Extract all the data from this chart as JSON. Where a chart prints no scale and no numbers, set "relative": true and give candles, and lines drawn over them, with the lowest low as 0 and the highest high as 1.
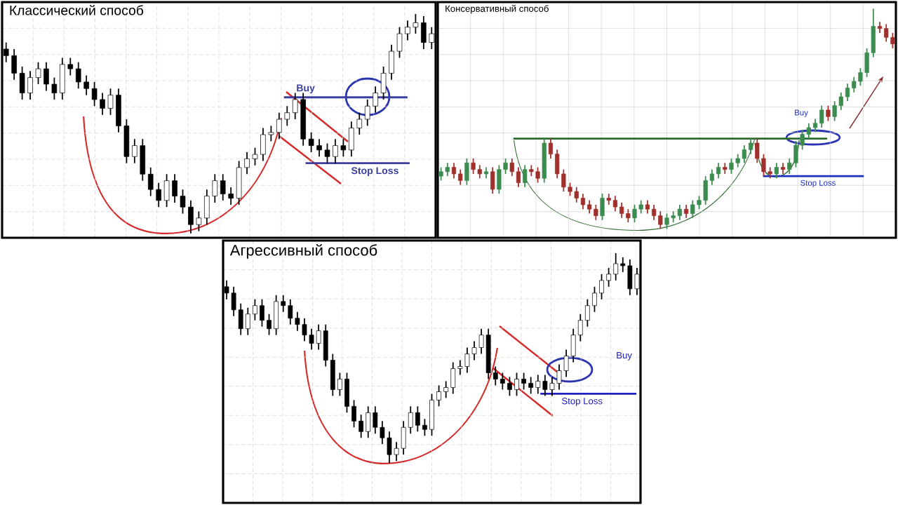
{
  "chart_data": [
    {
      "type": "candlestick",
      "title": "Классический способ",
      "relative": true,
      "grid": true,
      "tick_labels": false,
      "color": "#000000",
      "ohlc": [
        [
          0.84,
          0.87,
          0.78,
          0.81
        ],
        [
          0.81,
          0.84,
          0.7,
          0.73
        ],
        [
          0.73,
          0.76,
          0.61,
          0.64
        ],
        [
          0.64,
          0.74,
          0.61,
          0.71
        ],
        [
          0.71,
          0.78,
          0.68,
          0.75
        ],
        [
          0.75,
          0.78,
          0.65,
          0.68
        ],
        [
          0.68,
          0.71,
          0.61,
          0.64
        ],
        [
          0.64,
          0.8,
          0.61,
          0.77
        ],
        [
          0.77,
          0.8,
          0.72,
          0.75
        ],
        [
          0.75,
          0.78,
          0.66,
          0.69
        ],
        [
          0.69,
          0.72,
          0.63,
          0.66
        ],
        [
          0.66,
          0.69,
          0.58,
          0.61
        ],
        [
          0.61,
          0.64,
          0.54,
          0.57
        ],
        [
          0.57,
          0.66,
          0.54,
          0.63
        ],
        [
          0.63,
          0.66,
          0.46,
          0.49
        ],
        [
          0.49,
          0.52,
          0.32,
          0.35
        ],
        [
          0.35,
          0.43,
          0.32,
          0.4
        ],
        [
          0.4,
          0.43,
          0.24,
          0.27
        ],
        [
          0.27,
          0.3,
          0.17,
          0.2
        ],
        [
          0.2,
          0.23,
          0.12,
          0.15
        ],
        [
          0.15,
          0.27,
          0.12,
          0.24
        ],
        [
          0.24,
          0.27,
          0.14,
          0.17
        ],
        [
          0.17,
          0.2,
          0.09,
          0.12
        ],
        [
          0.12,
          0.15,
          0.0,
          0.04
        ],
        [
          0.04,
          0.1,
          0.01,
          0.07
        ],
        [
          0.07,
          0.2,
          0.04,
          0.17
        ],
        [
          0.17,
          0.27,
          0.14,
          0.24
        ],
        [
          0.24,
          0.27,
          0.15,
          0.18
        ],
        [
          0.18,
          0.21,
          0.13,
          0.16
        ],
        [
          0.16,
          0.33,
          0.13,
          0.3
        ],
        [
          0.3,
          0.37,
          0.27,
          0.34
        ],
        [
          0.34,
          0.39,
          0.31,
          0.36
        ],
        [
          0.36,
          0.48,
          0.33,
          0.45
        ],
        [
          0.45,
          0.49,
          0.42,
          0.46
        ],
        [
          0.46,
          0.55,
          0.43,
          0.52
        ],
        [
          0.52,
          0.58,
          0.49,
          0.55
        ],
        [
          0.55,
          0.64,
          0.52,
          0.61
        ],
        [
          0.61,
          0.64,
          0.4,
          0.43
        ],
        [
          0.43,
          0.46,
          0.37,
          0.4
        ],
        [
          0.4,
          0.43,
          0.35,
          0.38
        ],
        [
          0.38,
          0.41,
          0.32,
          0.35
        ],
        [
          0.35,
          0.43,
          0.32,
          0.4
        ],
        [
          0.4,
          0.43,
          0.35,
          0.38
        ],
        [
          0.38,
          0.51,
          0.35,
          0.48
        ],
        [
          0.48,
          0.55,
          0.45,
          0.52
        ],
        [
          0.52,
          0.61,
          0.49,
          0.58
        ],
        [
          0.58,
          0.67,
          0.55,
          0.64
        ],
        [
          0.64,
          0.76,
          0.61,
          0.73
        ],
        [
          0.73,
          0.86,
          0.7,
          0.83
        ],
        [
          0.83,
          0.94,
          0.8,
          0.91
        ],
        [
          0.91,
          0.97,
          0.88,
          0.94
        ],
        [
          0.94,
          1.0,
          0.91,
          0.96
        ],
        [
          0.96,
          0.99,
          0.84,
          0.87
        ],
        [
          0.87,
          0.94,
          0.84,
          0.91
        ]
      ],
      "ref_lines": [
        {
          "axis": "y",
          "value": 0.62,
          "label": "Buy",
          "color": "#3b3fa0"
        },
        {
          "axis": "y",
          "value": 0.32,
          "label": "Stop Loss",
          "color": "#3b3fa0"
        }
      ]
    },
    {
      "type": "candlestick",
      "title": "Консервативный способ",
      "relative": true,
      "grid": true,
      "tick_labels": false,
      "ohlc": [
        [
          0.24,
          0.28,
          0.22,
          0.26
        ],
        [
          0.26,
          0.3,
          0.24,
          0.28
        ],
        [
          0.28,
          0.3,
          0.23,
          0.25
        ],
        [
          0.25,
          0.27,
          0.2,
          0.22
        ],
        [
          0.22,
          0.32,
          0.2,
          0.3
        ],
        [
          0.3,
          0.32,
          0.25,
          0.27
        ],
        [
          0.27,
          0.29,
          0.23,
          0.25
        ],
        [
          0.25,
          0.28,
          0.23,
          0.26
        ],
        [
          0.26,
          0.28,
          0.16,
          0.18
        ],
        [
          0.18,
          0.29,
          0.16,
          0.27
        ],
        [
          0.27,
          0.32,
          0.25,
          0.3
        ],
        [
          0.3,
          0.32,
          0.24,
          0.26
        ],
        [
          0.26,
          0.28,
          0.19,
          0.21
        ],
        [
          0.21,
          0.29,
          0.19,
          0.27
        ],
        [
          0.27,
          0.29,
          0.24,
          0.26
        ],
        [
          0.26,
          0.28,
          0.21,
          0.23
        ],
        [
          0.23,
          0.41,
          0.21,
          0.39
        ],
        [
          0.39,
          0.41,
          0.32,
          0.34
        ],
        [
          0.34,
          0.36,
          0.23,
          0.25
        ],
        [
          0.25,
          0.27,
          0.17,
          0.19
        ],
        [
          0.19,
          0.21,
          0.15,
          0.17
        ],
        [
          0.17,
          0.19,
          0.12,
          0.14
        ],
        [
          0.14,
          0.16,
          0.09,
          0.11
        ],
        [
          0.11,
          0.13,
          0.07,
          0.09
        ],
        [
          0.09,
          0.11,
          0.04,
          0.06
        ],
        [
          0.06,
          0.16,
          0.04,
          0.14
        ],
        [
          0.14,
          0.16,
          0.11,
          0.13
        ],
        [
          0.13,
          0.15,
          0.08,
          0.1
        ],
        [
          0.1,
          0.12,
          0.05,
          0.07
        ],
        [
          0.07,
          0.09,
          0.03,
          0.05
        ],
        [
          0.05,
          0.11,
          0.03,
          0.09
        ],
        [
          0.09,
          0.13,
          0.07,
          0.11
        ],
        [
          0.11,
          0.13,
          0.07,
          0.09
        ],
        [
          0.09,
          0.11,
          0.04,
          0.06
        ],
        [
          0.06,
          0.08,
          0.0,
          0.02
        ],
        [
          0.02,
          0.07,
          0.0,
          0.05
        ],
        [
          0.05,
          0.08,
          0.03,
          0.06
        ],
        [
          0.06,
          0.11,
          0.04,
          0.09
        ],
        [
          0.09,
          0.11,
          0.05,
          0.07
        ],
        [
          0.07,
          0.13,
          0.05,
          0.11
        ],
        [
          0.11,
          0.15,
          0.09,
          0.13
        ],
        [
          0.13,
          0.24,
          0.11,
          0.22
        ],
        [
          0.22,
          0.27,
          0.2,
          0.25
        ],
        [
          0.25,
          0.3,
          0.23,
          0.28
        ],
        [
          0.28,
          0.3,
          0.25,
          0.27
        ],
        [
          0.27,
          0.32,
          0.25,
          0.3
        ],
        [
          0.3,
          0.34,
          0.28,
          0.32
        ],
        [
          0.32,
          0.38,
          0.3,
          0.36
        ],
        [
          0.36,
          0.41,
          0.34,
          0.39
        ],
        [
          0.39,
          0.41,
          0.3,
          0.32
        ],
        [
          0.32,
          0.34,
          0.24,
          0.26
        ],
        [
          0.26,
          0.28,
          0.23,
          0.25
        ],
        [
          0.25,
          0.3,
          0.23,
          0.28
        ],
        [
          0.28,
          0.3,
          0.25,
          0.27
        ],
        [
          0.27,
          0.32,
          0.25,
          0.3
        ],
        [
          0.3,
          0.4,
          0.28,
          0.38
        ],
        [
          0.38,
          0.45,
          0.36,
          0.43
        ],
        [
          0.43,
          0.48,
          0.41,
          0.46
        ],
        [
          0.46,
          0.5,
          0.44,
          0.48
        ],
        [
          0.48,
          0.56,
          0.46,
          0.54
        ],
        [
          0.54,
          0.56,
          0.49,
          0.51
        ],
        [
          0.51,
          0.58,
          0.49,
          0.56
        ],
        [
          0.56,
          0.62,
          0.54,
          0.6
        ],
        [
          0.6,
          0.66,
          0.58,
          0.64
        ],
        [
          0.64,
          0.69,
          0.62,
          0.67
        ],
        [
          0.67,
          0.73,
          0.65,
          0.71
        ],
        [
          0.71,
          0.82,
          0.69,
          0.8
        ],
        [
          0.8,
          1.0,
          0.78,
          0.92
        ],
        [
          0.92,
          0.94,
          0.89,
          0.91
        ],
        [
          0.91,
          0.93,
          0.85,
          0.87
        ],
        [
          0.87,
          0.89,
          0.82,
          0.84
        ]
      ],
      "colors": [
        "#3c8c50",
        "#3c8c50",
        "#a0302c",
        "#a0302c",
        "#3c8c50",
        "#a0302c",
        "#a0302c",
        "#3c8c50",
        "#a0302c",
        "#3c8c50",
        "#3c8c50",
        "#a0302c",
        "#a0302c",
        "#3c8c50",
        "#a0302c",
        "#a0302c",
        "#3c8c50",
        "#a0302c",
        "#a0302c",
        "#a0302c",
        "#a0302c",
        "#a0302c",
        "#a0302c",
        "#a0302c",
        "#a0302c",
        "#3c8c50",
        "#a0302c",
        "#a0302c",
        "#a0302c",
        "#a0302c",
        "#3c8c50",
        "#3c8c50",
        "#a0302c",
        "#a0302c",
        "#a0302c",
        "#3c8c50",
        "#3c8c50",
        "#3c8c50",
        "#a0302c",
        "#3c8c50",
        "#3c8c50",
        "#3c8c50",
        "#3c8c50",
        "#3c8c50",
        "#a0302c",
        "#3c8c50",
        "#3c8c50",
        "#3c8c50",
        "#3c8c50",
        "#a0302c",
        "#a0302c",
        "#a0302c",
        "#3c8c50",
        "#a0302c",
        "#3c8c50",
        "#3c8c50",
        "#3c8c50",
        "#3c8c50",
        "#3c8c50",
        "#3c8c50",
        "#a0302c",
        "#3c8c50",
        "#3c8c50",
        "#3c8c50",
        "#3c8c50",
        "#3c8c50",
        "#3c8c50",
        "#3c8c50",
        "#a0302c",
        "#a0302c",
        "#a0302c"
      ],
      "ref_lines": [
        {
          "axis": "y",
          "value": 0.41,
          "color": "#2e6b2e"
        },
        {
          "axis": "y",
          "value": 0.24,
          "label": "Stop Loss",
          "color": "#1f2fc0"
        }
      ],
      "annotations": [
        "Buy"
      ]
    },
    {
      "type": "candlestick",
      "title": "Агрессивный способ",
      "relative": true,
      "grid": true,
      "tick_labels": false,
      "color": "#000000",
      "ohlc": [
        [
          0.84,
          0.87,
          0.78,
          0.81
        ],
        [
          0.81,
          0.84,
          0.7,
          0.73
        ],
        [
          0.73,
          0.76,
          0.61,
          0.64
        ],
        [
          0.64,
          0.74,
          0.61,
          0.71
        ],
        [
          0.71,
          0.78,
          0.68,
          0.75
        ],
        [
          0.75,
          0.78,
          0.65,
          0.68
        ],
        [
          0.68,
          0.71,
          0.61,
          0.64
        ],
        [
          0.64,
          0.8,
          0.61,
          0.77
        ],
        [
          0.77,
          0.8,
          0.72,
          0.75
        ],
        [
          0.75,
          0.78,
          0.66,
          0.69
        ],
        [
          0.69,
          0.72,
          0.63,
          0.66
        ],
        [
          0.66,
          0.69,
          0.58,
          0.61
        ],
        [
          0.61,
          0.64,
          0.54,
          0.57
        ],
        [
          0.57,
          0.66,
          0.54,
          0.63
        ],
        [
          0.63,
          0.66,
          0.46,
          0.49
        ],
        [
          0.49,
          0.52,
          0.32,
          0.35
        ],
        [
          0.35,
          0.43,
          0.32,
          0.4
        ],
        [
          0.4,
          0.43,
          0.24,
          0.27
        ],
        [
          0.27,
          0.3,
          0.17,
          0.2
        ],
        [
          0.2,
          0.23,
          0.12,
          0.15
        ],
        [
          0.15,
          0.27,
          0.12,
          0.24
        ],
        [
          0.24,
          0.27,
          0.14,
          0.17
        ],
        [
          0.17,
          0.2,
          0.09,
          0.12
        ],
        [
          0.12,
          0.15,
          0.0,
          0.04
        ],
        [
          0.04,
          0.1,
          0.01,
          0.07
        ],
        [
          0.07,
          0.2,
          0.04,
          0.17
        ],
        [
          0.17,
          0.27,
          0.14,
          0.24
        ],
        [
          0.24,
          0.27,
          0.15,
          0.18
        ],
        [
          0.18,
          0.21,
          0.13,
          0.16
        ],
        [
          0.16,
          0.33,
          0.13,
          0.3
        ],
        [
          0.3,
          0.37,
          0.27,
          0.34
        ],
        [
          0.34,
          0.39,
          0.31,
          0.36
        ],
        [
          0.36,
          0.48,
          0.33,
          0.45
        ],
        [
          0.45,
          0.49,
          0.42,
          0.46
        ],
        [
          0.46,
          0.55,
          0.43,
          0.52
        ],
        [
          0.52,
          0.58,
          0.49,
          0.55
        ],
        [
          0.55,
          0.64,
          0.52,
          0.61
        ],
        [
          0.61,
          0.64,
          0.4,
          0.43
        ],
        [
          0.43,
          0.46,
          0.37,
          0.4
        ],
        [
          0.4,
          0.43,
          0.35,
          0.38
        ],
        [
          0.38,
          0.41,
          0.32,
          0.35
        ],
        [
          0.35,
          0.43,
          0.32,
          0.4
        ],
        [
          0.4,
          0.43,
          0.35,
          0.38
        ],
        [
          0.38,
          0.41,
          0.33,
          0.36
        ],
        [
          0.36,
          0.42,
          0.33,
          0.39
        ],
        [
          0.39,
          0.42,
          0.32,
          0.35
        ],
        [
          0.35,
          0.41,
          0.32,
          0.38
        ],
        [
          0.38,
          0.47,
          0.35,
          0.44
        ],
        [
          0.44,
          0.54,
          0.41,
          0.51
        ],
        [
          0.51,
          0.64,
          0.48,
          0.61
        ],
        [
          0.61,
          0.71,
          0.58,
          0.68
        ],
        [
          0.68,
          0.78,
          0.65,
          0.75
        ],
        [
          0.75,
          0.84,
          0.72,
          0.81
        ],
        [
          0.81,
          0.9,
          0.78,
          0.87
        ],
        [
          0.87,
          0.93,
          0.84,
          0.9
        ],
        [
          0.9,
          1.0,
          0.87,
          0.95
        ],
        [
          0.95,
          0.98,
          0.91,
          0.94
        ],
        [
          0.94,
          0.97,
          0.8,
          0.83
        ],
        [
          0.83,
          0.93,
          0.8,
          0.9
        ]
      ],
      "ref_lines": [
        {
          "axis": "y",
          "value": 0.33,
          "label": "Stop Loss",
          "color": "#2020c0"
        }
      ],
      "annotations": [
        "Buy"
      ]
    }
  ]
}
